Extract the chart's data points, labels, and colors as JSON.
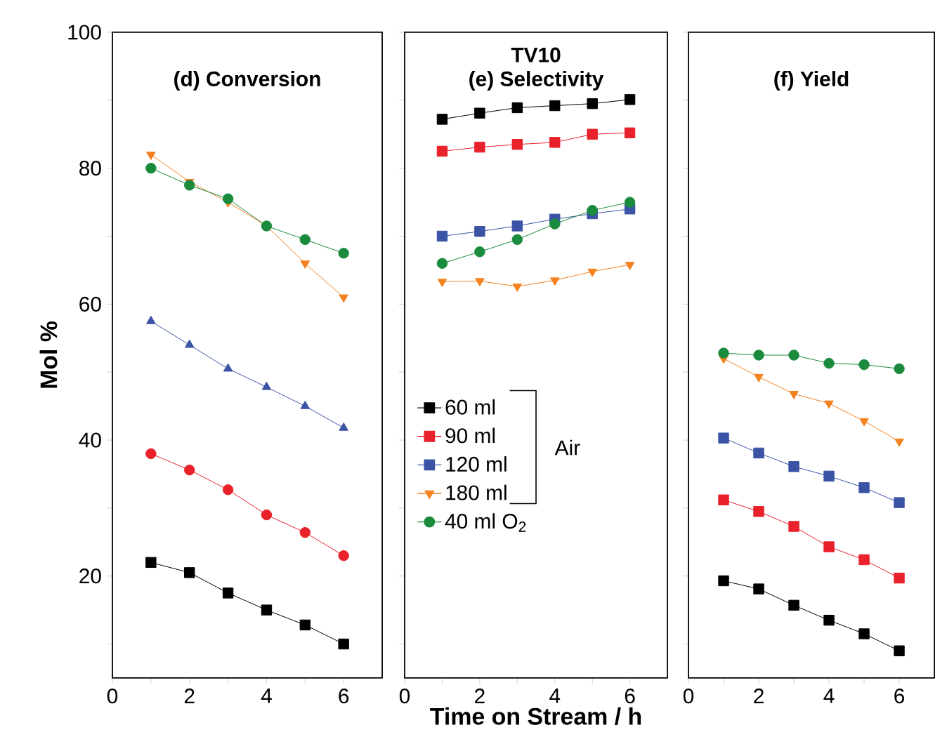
{
  "chart_data": [
    {
      "type": "line",
      "title": "(d) Conversion",
      "ylabel": "Mol %",
      "xlim": [
        0,
        7
      ],
      "ylim": [
        5,
        100
      ],
      "xticks": [
        0,
        {
          "value": 1,
          "label": null
        },
        2,
        {
          "value": 3,
          "label": null
        },
        4,
        {
          "value": 5,
          "label": null
        },
        6
      ],
      "yticks": [
        {
          "value": 10,
          "label": null
        },
        20,
        {
          "value": 30,
          "label": null
        },
        40,
        {
          "value": 50,
          "label": null
        },
        60,
        {
          "value": 70,
          "label": null
        },
        80,
        {
          "value": 90,
          "label": null
        },
        100
      ],
      "x": [
        1,
        2,
        3,
        4,
        5,
        6
      ],
      "line_style": "solid",
      "series": [
        {
          "color": "#000000",
          "marker": "square",
          "values": [
            22,
            20.5,
            17.5,
            15,
            12.8,
            10
          ]
        },
        {
          "color": "#e8212b",
          "marker": "circle",
          "values": [
            38,
            35.6,
            32.7,
            29,
            26.4,
            23
          ]
        },
        {
          "color": "#3a53a4",
          "marker": "triangle",
          "values": [
            57.5,
            54,
            50.5,
            47.8,
            45,
            41.8
          ]
        },
        {
          "color": "#f58220",
          "marker": "triangle-down",
          "values": [
            82,
            78,
            75,
            71.5,
            66,
            61
          ]
        },
        {
          "color": "#1a8a3c",
          "marker": "circle",
          "values": [
            80,
            77.5,
            75.5,
            71.5,
            69.5,
            67.5
          ]
        }
      ]
    },
    {
      "type": "line",
      "title": "TV10",
      "subtitle": "(e) Selectivity",
      "xlabel": "Time on Stream / h",
      "xlim": [
        0,
        7
      ],
      "ylim": [
        5,
        100
      ],
      "tick_labels": "x",
      "xticks": [
        0,
        {
          "value": 1,
          "label": null
        },
        2,
        {
          "value": 3,
          "label": null
        },
        4,
        {
          "value": 5,
          "label": null
        },
        6
      ],
      "yticks": [
        {
          "value": 10,
          "label": null
        },
        {
          "value": 20,
          "label": null
        },
        {
          "value": 30,
          "label": null
        },
        {
          "value": 40,
          "label": null
        },
        {
          "value": 50,
          "label": null
        },
        {
          "value": 60,
          "label": null
        },
        {
          "value": 70,
          "label": null
        },
        {
          "value": 80,
          "label": null
        },
        {
          "value": 90,
          "label": null
        },
        {
          "value": 100,
          "label": null
        }
      ],
      "x": [
        1,
        2,
        3,
        4,
        5,
        6
      ],
      "line_style": "solid",
      "legend": "left",
      "annotations": [
        "Air"
      ],
      "series": [
        {
          "name": "60 ml",
          "color": "#000000",
          "marker": "square",
          "values": [
            87.2,
            88.1,
            88.9,
            89.2,
            89.5,
            90.1
          ]
        },
        {
          "name": "90 ml",
          "color": "#e8212b",
          "marker": "square",
          "values": [
            82.5,
            83.1,
            83.5,
            83.8,
            85,
            85.2
          ]
        },
        {
          "name": "120 ml",
          "color": "#3a53a4",
          "marker": "square",
          "values": [
            70,
            70.7,
            71.5,
            72.5,
            73.3,
            74
          ]
        },
        {
          "name": "180 ml",
          "color": "#f58220",
          "marker": "triangle-down",
          "values": [
            63.3,
            63.4,
            62.6,
            63.5,
            64.8,
            65.8
          ]
        },
        {
          "name": "40 ml O$_{2}$",
          "color": "#1a8a3c",
          "marker": "circle",
          "values": [
            66,
            67.7,
            69.5,
            71.8,
            73.8,
            75
          ]
        }
      ]
    },
    {
      "type": "line",
      "title": "(f) Yield",
      "xlim": [
        0,
        7
      ],
      "ylim": [
        5,
        100
      ],
      "tick_labels": "x",
      "xticks": [
        0,
        {
          "value": 1,
          "label": null
        },
        2,
        {
          "value": 3,
          "label": null
        },
        4,
        {
          "value": 5,
          "label": null
        },
        6
      ],
      "yticks": [
        {
          "value": 10,
          "label": null
        },
        {
          "value": 20,
          "label": null
        },
        {
          "value": 30,
          "label": null
        },
        {
          "value": 40,
          "label": null
        },
        {
          "value": 50,
          "label": null
        },
        {
          "value": 60,
          "label": null
        },
        {
          "value": 70,
          "label": null
        },
        {
          "value": 80,
          "label": null
        },
        {
          "value": 90,
          "label": null
        },
        {
          "value": 100,
          "label": null
        }
      ],
      "x": [
        1,
        2,
        3,
        4,
        5,
        6
      ],
      "line_style": "solid",
      "series": [
        {
          "color": "#000000",
          "marker": "square",
          "values": [
            19.3,
            18.1,
            15.7,
            13.5,
            11.5,
            9
          ]
        },
        {
          "color": "#e8212b",
          "marker": "square",
          "values": [
            31.2,
            29.5,
            27.3,
            24.3,
            22.4,
            19.7
          ]
        },
        {
          "color": "#3a53a4",
          "marker": "square",
          "values": [
            40.3,
            38.1,
            36.1,
            34.7,
            33,
            30.8
          ]
        },
        {
          "color": "#f58220",
          "marker": "triangle-down",
          "values": [
            52,
            49.3,
            46.8,
            45.4,
            42.8,
            39.8
          ]
        },
        {
          "color": "#1a8a3c",
          "marker": "circle",
          "values": [
            52.8,
            52.5,
            52.5,
            51.3,
            51.1,
            50.5
          ]
        }
      ]
    }
  ]
}
